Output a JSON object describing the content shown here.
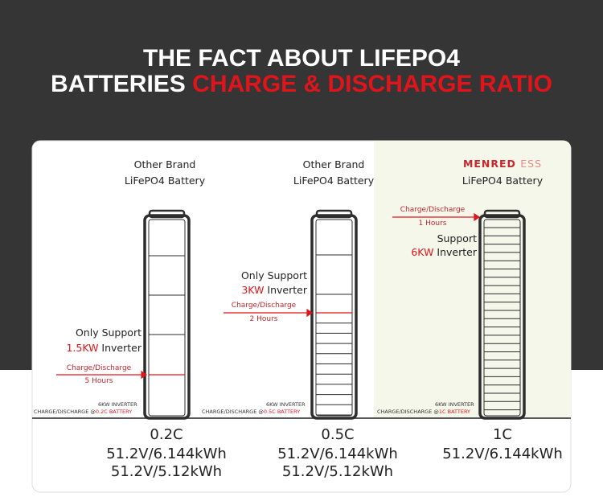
{
  "title": {
    "line1": "THE FACT ABOUT LIFEPO4",
    "line2_prefix": "BATTERIES",
    "line2_highlight": "CHARGE & DISCHARGE RATIO"
  },
  "columns": [
    {
      "brand_line1": "Other Brand",
      "brand_line2": "LiFePO4 Battery",
      "support_line1": "Only Support",
      "support_power": "1.5KW",
      "support_suffix": "Inverter",
      "arrow_label": "Charge/Discharge",
      "arrow_duration": "5 Hours",
      "inverter_note": "6KW INVERTER",
      "ratio_note_prefix": "CHARGE/DISCHARGE @",
      "ratio_note_highlight": "0.2C BATTERY",
      "rate": "0.2C",
      "specs": [
        "51.2V/6.144kWh",
        "51.2V/5.12kWh"
      ]
    },
    {
      "brand_line1": "Other Brand",
      "brand_line2": "LiFePO4 Battery",
      "support_line1": "Only Support",
      "support_power": "3KW",
      "support_suffix": "Inverter",
      "arrow_label": "Charge/Discharge",
      "arrow_duration": "2 Hours",
      "inverter_note": "6KW INVERTER",
      "ratio_note_prefix": "CHARGE/DISCHARGE @",
      "ratio_note_highlight": "0.5C BATTERY",
      "rate": "0.5C",
      "specs": [
        "51.2V/6.144kWh",
        "51.2V/5.12kWh"
      ]
    },
    {
      "brand_name": "MENRED",
      "brand_suffix": "ESS",
      "brand_line2": "LiFePO4 Battery",
      "support_line1": "Support",
      "support_power": "6KW",
      "support_suffix": "Inverter",
      "arrow_label": "Charge/Discharge",
      "arrow_duration": "1 Hours",
      "inverter_note": "6KW INVERTER",
      "ratio_note_prefix": "CHARGE/DISCHARGE @",
      "ratio_note_highlight": "1C BATTERY",
      "rate": "1C",
      "specs": [
        "51.2V/6.144kWh"
      ]
    }
  ]
}
